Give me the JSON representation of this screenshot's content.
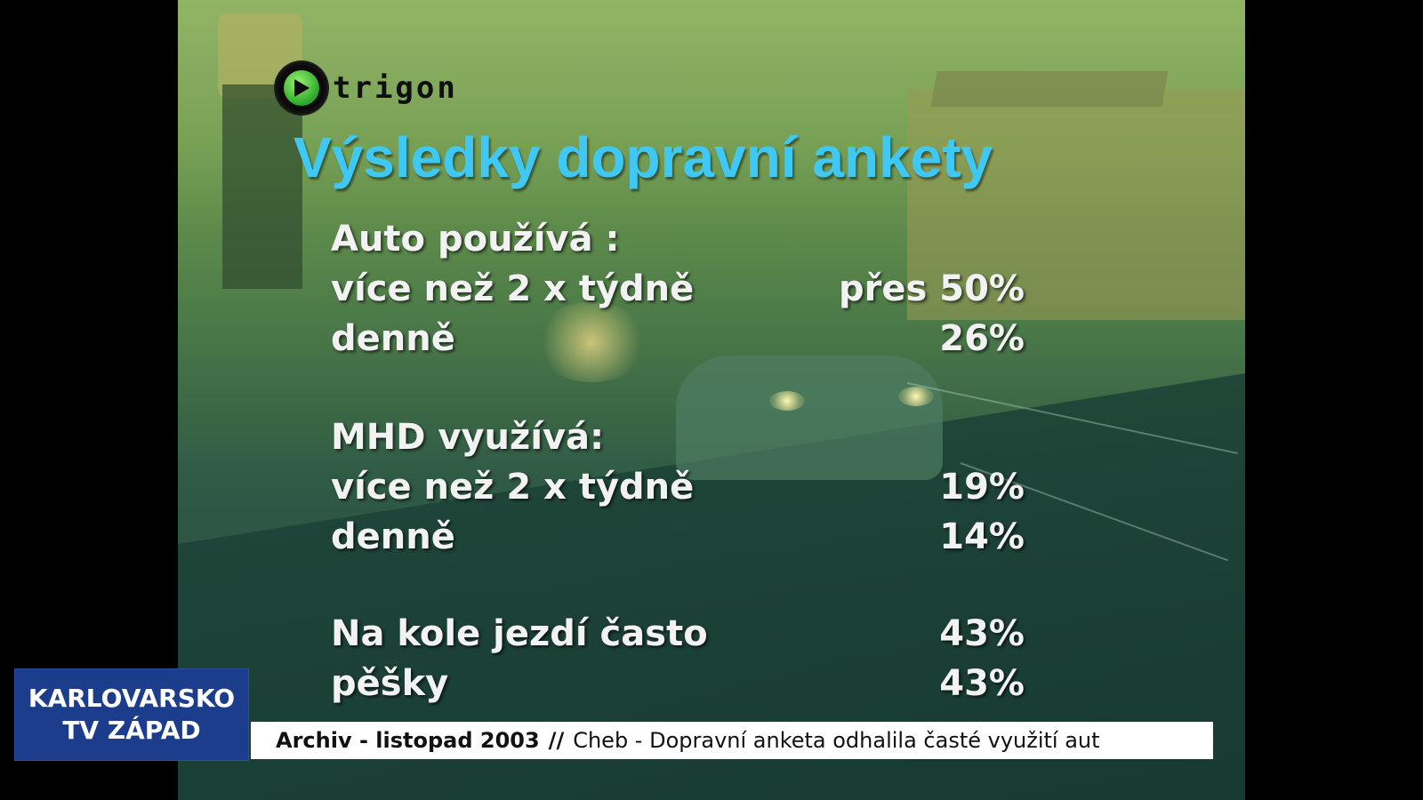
{
  "logo": {
    "text": "trigon"
  },
  "slide": {
    "title": "Výsledky dopravní ankety",
    "rows": [
      {
        "label": "Auto používá :",
        "value": ""
      },
      {
        "label": "více než 2 x týdně",
        "value": "přes 50%"
      },
      {
        "label": "denně",
        "value": "26%"
      },
      {
        "label": "MHD využívá:",
        "value": ""
      },
      {
        "label": "více než 2 x týdně",
        "value": "19%"
      },
      {
        "label": "denně",
        "value": "14%"
      },
      {
        "label": "Na kole jezdí často",
        "value": "43%"
      },
      {
        "label": "pěšky",
        "value": "43%"
      }
    ]
  },
  "station": {
    "line1": "KARLOVARSKO",
    "line2": "TV ZÁPAD"
  },
  "ticker": {
    "prefix": "Archiv - listopad 2003",
    "separator": "//",
    "headline": "Cheb - Dopravní anketa odhalila časté využití aut"
  }
}
